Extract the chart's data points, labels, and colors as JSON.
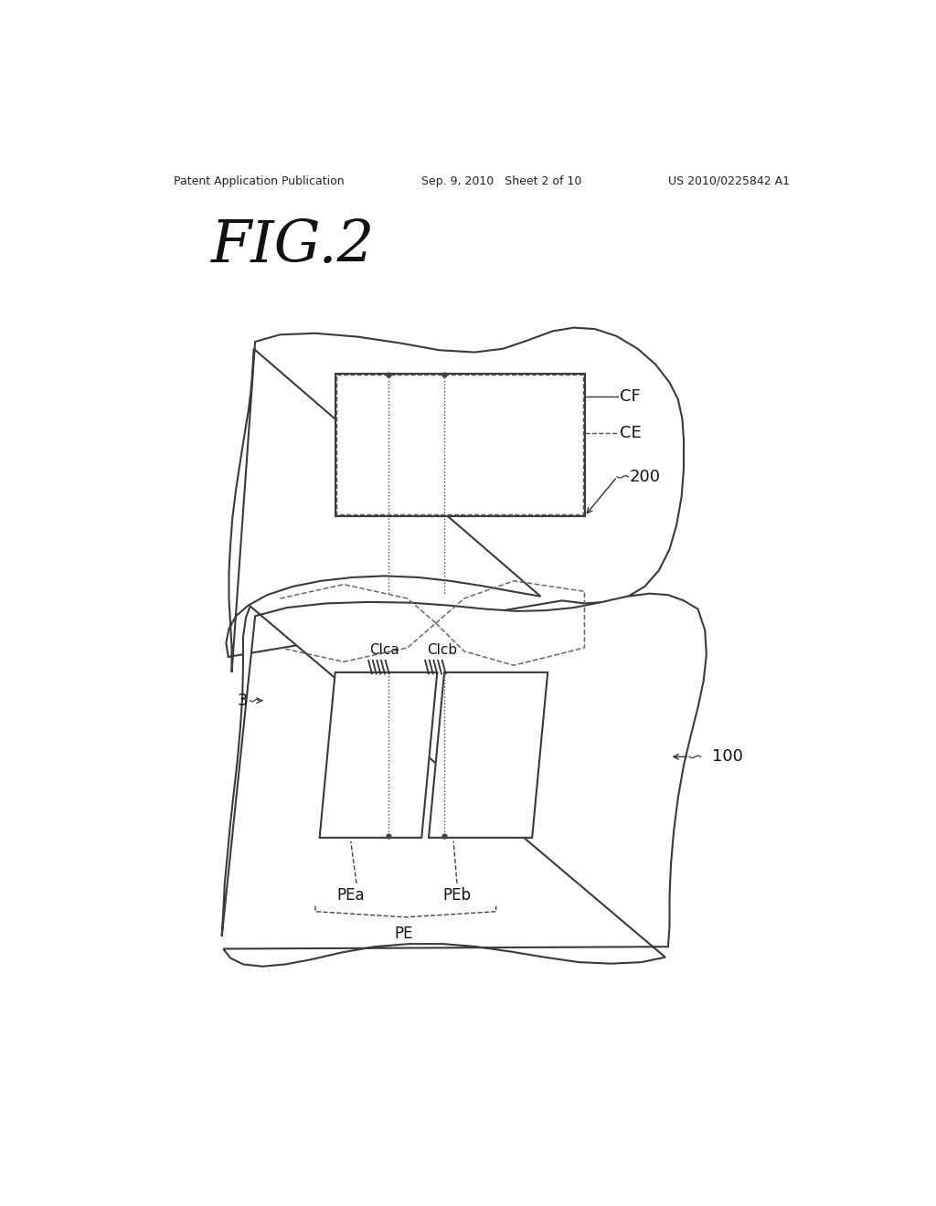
{
  "title": "FIG.2",
  "header_left": "Patent Application Publication",
  "header_mid": "Sep. 9, 2010   Sheet 2 of 10",
  "header_right": "US 2010/0225842 A1",
  "bg_color": "#ffffff",
  "line_color": "#333333",
  "label_CF": "CF",
  "label_CE": "CE",
  "label_200": "200",
  "label_100": "100",
  "label_3": "3",
  "label_Clca": "Clca",
  "label_Clcb": "Clcb",
  "label_PEa": "PEa",
  "label_PEb": "PEb",
  "label_PE": "PE"
}
